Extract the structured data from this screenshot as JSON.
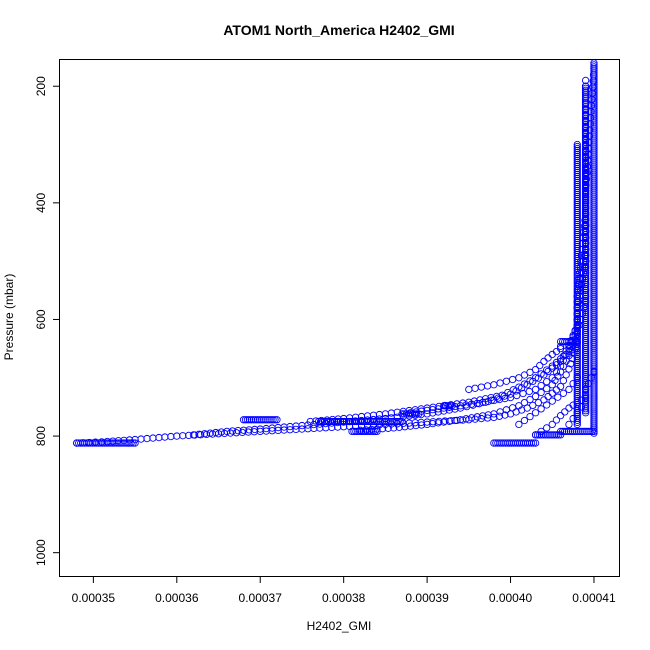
{
  "chart_data": {
    "type": "scatter",
    "title": "ATOM1 North_America H2402_GMI",
    "xlabel": "H2402_GMI",
    "ylabel": "Pressure (mbar)",
    "xlim": [
      0.000346,
      0.000413
    ],
    "ylim": [
      1040,
      155
    ],
    "y_reversed": true,
    "x_ticks": [
      "0.00035",
      "0.00036",
      "0.00037",
      "0.00038",
      "0.00039",
      "0.00040",
      "0.00041"
    ],
    "x_tick_values": [
      0.00035,
      0.00036,
      0.00037,
      0.00038,
      0.00039,
      0.0004,
      0.00041
    ],
    "y_ticks": [
      "200",
      "400",
      "600",
      "800",
      "1000"
    ],
    "y_tick_values": [
      200,
      400,
      600,
      800,
      1000
    ],
    "marker": "open-circle",
    "grid": false,
    "color": "#0000ff",
    "series": [
      {
        "x": [
          0.000348,
          0.000351,
          0.000355,
          0.00036,
          0.000365,
          0.00037,
          0.000375,
          0.00038,
          0.000385,
          0.00039,
          0.000395,
          0.000398,
          0.0004,
          0.000402,
          0.000404,
          0.000406,
          0.000407,
          0.000408,
          0.000408,
          0.000409,
          0.000409,
          0.00041
        ],
        "y": [
          812,
          810,
          806,
          800,
          796,
          792,
          788,
          784,
          780,
          776,
          772,
          768,
          762,
          752,
          738,
          715,
          685,
          640,
          580,
          500,
          380,
          170
        ]
      },
      {
        "x": [
          0.000362,
          0.000366,
          0.00037,
          0.000375,
          0.00038,
          0.000385,
          0.00039,
          0.000394,
          0.000397,
          0.0004,
          0.000402,
          0.000404,
          0.000406,
          0.000407,
          0.000408,
          0.000408,
          0.000409,
          0.000409,
          0.000409
        ],
        "y": [
          798,
          792,
          788,
          782,
          776,
          770,
          762,
          752,
          742,
          728,
          712,
          695,
          672,
          645,
          610,
          560,
          480,
          360,
          190
        ]
      },
      {
        "x": [
          0.000376,
          0.00038,
          0.000385,
          0.00039,
          0.000395,
          0.000399,
          0.000401,
          0.000403,
          0.000405,
          0.000407,
          0.000408,
          0.000409,
          0.000409,
          0.000409
        ],
        "y": [
          775,
          770,
          762,
          752,
          742,
          730,
          716,
          700,
          680,
          655,
          620,
          570,
          470,
          260
        ]
      },
      {
        "x": [
          0.000382,
          0.000386,
          0.00039,
          0.000394,
          0.000398,
          0.000401,
          0.000403,
          0.000405,
          0.000406,
          0.000407,
          0.000408,
          0.000408,
          0.000409,
          0.000409
        ],
        "y": [
          790,
          786,
          780,
          772,
          762,
          748,
          732,
          712,
          690,
          662,
          625,
          580,
          500,
          300
        ]
      },
      {
        "x": [
          0.000388,
          0.000392,
          0.000396,
          0.0004,
          0.000403,
          0.000405,
          0.000406,
          0.000407,
          0.000408,
          0.000408,
          0.000409
        ],
        "y": [
          760,
          752,
          744,
          734,
          720,
          700,
          680,
          650,
          610,
          560,
          420
        ]
      },
      {
        "x": [
          0.000395,
          0.000398,
          0.000401,
          0.000403,
          0.000404,
          0.000405,
          0.000406,
          0.000406,
          0.000407
        ],
        "y": [
          720,
          712,
          700,
          686,
          672,
          660,
          650,
          646,
          644
        ]
      },
      {
        "x": [
          0.000401,
          0.000403,
          0.000405,
          0.000407,
          0.000408
        ],
        "y": [
          780,
          760,
          740,
          720,
          700
        ]
      },
      {
        "x": [
          0.000403,
          0.000405,
          0.000406,
          0.000407,
          0.000408,
          0.000409
        ],
        "y": [
          798,
          780,
          765,
          752,
          742,
          735
        ]
      },
      {
        "x": [
          0.000407,
          0.000408,
          0.000409,
          0.000409,
          0.00041
        ],
        "y": [
          780,
          760,
          740,
          720,
          690
        ]
      }
    ],
    "flat_runs": [
      {
        "x_start": 0.000348,
        "x_end": 0.000355,
        "y": 812
      },
      {
        "x_start": 0.000398,
        "x_end": 0.000403,
        "y": 812
      },
      {
        "x_start": 0.000368,
        "x_end": 0.000372,
        "y": 772
      },
      {
        "x_start": 0.000377,
        "x_end": 0.000387,
        "y": 775
      },
      {
        "x_start": 0.000381,
        "x_end": 0.000384,
        "y": 792
      },
      {
        "x_start": 0.000387,
        "x_end": 0.000389,
        "y": 762
      },
      {
        "x_start": 0.000392,
        "x_end": 0.000393,
        "y": 748
      },
      {
        "x_start": 0.000403,
        "x_end": 0.000406,
        "y": 798
      },
      {
        "x_start": 0.000406,
        "x_end": 0.00041,
        "y": 792
      },
      {
        "x_start": 0.000406,
        "x_end": 0.000408,
        "y": 638
      }
    ],
    "vertical_runs": [
      {
        "x": 0.00041,
        "y_start": 160,
        "y_end": 640
      },
      {
        "x": 0.000409,
        "y_start": 200,
        "y_end": 760
      },
      {
        "x": 0.000408,
        "y_start": 300,
        "y_end": 780
      },
      {
        "x": 0.00041,
        "y_start": 640,
        "y_end": 795
      }
    ]
  }
}
